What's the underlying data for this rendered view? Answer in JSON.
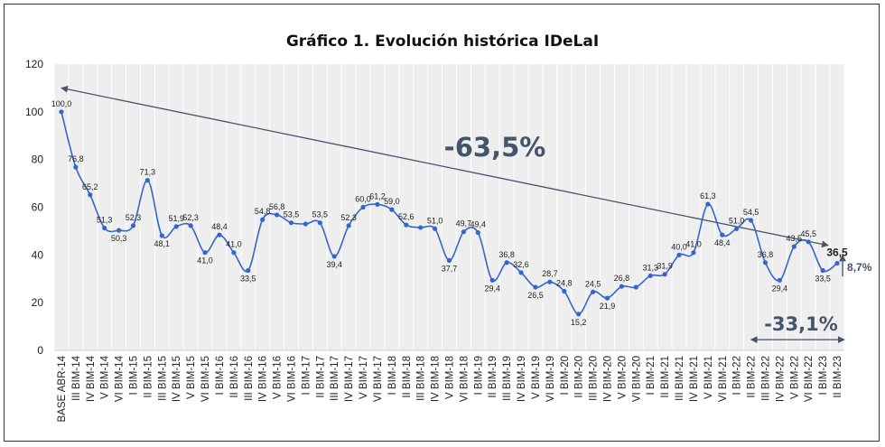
{
  "chart_data": {
    "type": "line",
    "title": "Gráfico 1. Evolución histórica IDeLaI",
    "xlabel": "",
    "ylabel": "",
    "ylim": [
      0,
      120
    ],
    "yticks": [
      0,
      20,
      40,
      60,
      80,
      100,
      120
    ],
    "grid": "vertical",
    "legend": "none",
    "categories": [
      "BASE ABR-14",
      "III BIM-14",
      "IV BIM-14",
      "V BIM-14",
      "VI BIM-14",
      "I BIM-15",
      "II BIM-15",
      "III BIM-15",
      "IV BIM-15",
      "V BIM-15",
      "VI BIM-15",
      "I BIM-16",
      "II BIM-16",
      "III BIM-16",
      "IV BIM-16",
      "V BIM-16",
      "VI BIM-16",
      "I BIM-17",
      "II BIM-17",
      "III BIM-17",
      "IV BIM-17",
      "V BIM-17",
      "VI BIM-17",
      "I BIM-18",
      "II BIM-18",
      "III BIM-18",
      "IV BIM-18",
      "V BIM-18",
      "VI BIM-18",
      "I BIM-19",
      "II BIM-19",
      "III BIM-19",
      "IV BIM-19",
      "V BIM-19",
      "VI BIM-19",
      "I BIM-20",
      "II BIM-20",
      "III BIM-20",
      "IV BIM-20",
      "V BIM-20",
      "VI BIM-20",
      "I BIM-21",
      "II BIM-21",
      "III BIM-21",
      "IV BIM-21",
      "V BIM-21",
      "VI BIM-21",
      "I BIM-22",
      "II BIM-22",
      "III BIM-22",
      "IV BIM-22",
      "V BIM-22",
      "VI BIM-22",
      "I BIM-23",
      "II BIM-23"
    ],
    "series": [
      {
        "values": [
          100.0,
          76.8,
          65.2,
          51.3,
          50.3,
          52.3,
          71.3,
          48.1,
          51.9,
          52.3,
          41.0,
          48.4,
          41.0,
          33.5,
          54.8,
          56.8,
          53.5,
          53.0,
          53.5,
          39.4,
          52.3,
          60.0,
          61.2,
          59.0,
          52.6,
          51.5,
          51.0,
          37.7,
          49.7,
          49.4,
          29.4,
          36.8,
          32.6,
          26.5,
          28.7,
          24.8,
          15.2,
          24.5,
          21.9,
          26.8,
          26.5,
          31.3,
          31.9,
          40.0,
          41.0,
          61.3,
          48.4,
          51.0,
          54.5,
          36.8,
          29.4,
          43.5,
          45.5,
          33.5,
          36.5
        ],
        "labels": [
          "100,0",
          "76,8",
          "65,2",
          "51,3",
          "50,3",
          "52,3",
          "71,3",
          "48,1",
          "51,9",
          "52,3",
          "41,0",
          "48,4",
          "41,0",
          "33,5",
          "54,8",
          "56,8",
          "53,5",
          "",
          "53,5",
          "39,4",
          "52,3",
          "60,0",
          "61,2",
          "59,0",
          "52,6",
          "",
          "51,0",
          "37,7",
          "49,7",
          "49,4",
          "29,4",
          "36,8",
          "32,6",
          "26,5",
          "28,7",
          "24,8",
          "15,2",
          "24,5",
          "21,9",
          "26,8",
          "",
          "31,3",
          "31,9",
          "40,0",
          "41,0",
          "61,3",
          "48,4",
          "51,0",
          "54,5",
          "36,8",
          "29,4",
          "43,5",
          "45,5",
          "33,5",
          "36,5"
        ]
      }
    ],
    "annotations": {
      "trend_change": "-63,5%",
      "recent_change": "-33,1%",
      "last_change": "8,7%",
      "trend_line": {
        "from": {
          "x": "BASE ABR-14",
          "y": 110
        },
        "to": {
          "x": "II BIM-23",
          "y": 44
        }
      },
      "recent_arrow": {
        "from": {
          "x": "II BIM-22",
          "y": 4.5
        },
        "to": {
          "x": "II BIM-23",
          "y": 4.5
        }
      },
      "last_arrow": {
        "from": {
          "x": "II BIM-23",
          "y": 31
        },
        "to": {
          "x": "II BIM-23",
          "y": 40
        }
      }
    },
    "colors": {
      "line": "#3366cc",
      "annotation": "#44546a",
      "plot_bg": "#eeeeee",
      "grid": "#ffffff"
    }
  }
}
